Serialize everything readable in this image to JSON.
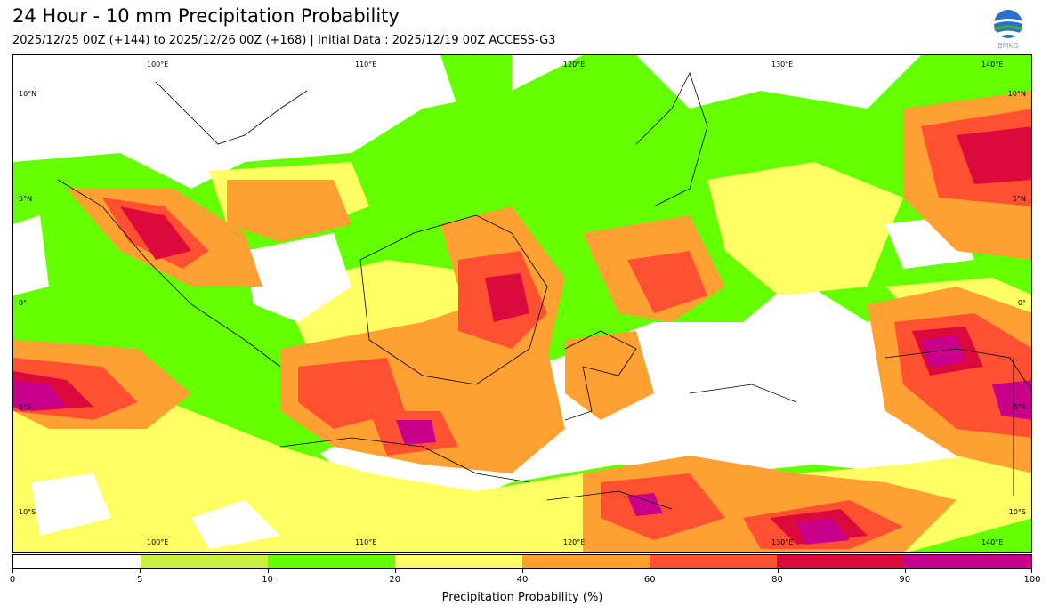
{
  "header": {
    "title": "24 Hour - 10 mm Precipitation Probability",
    "subtitle": "2025/12/25 00Z (+144) to 2025/12/26 00Z (+168) | Initial Data : 2025/12/19 00Z ACCESS-G3",
    "logo_text": "BMKG"
  },
  "map": {
    "lon_labels_top": [
      "100°E",
      "110°E",
      "120°E",
      "130°E",
      "140°E"
    ],
    "lon_labels_bottom": [
      "100°E",
      "110°E",
      "120°E",
      "130°E",
      "140°E"
    ],
    "lat_labels_left": [
      "10°N",
      "5°N",
      "0°",
      "5°S",
      "10°S"
    ],
    "lat_labels_right": [
      "10°N",
      "5°N",
      "0°",
      "5°S",
      "10°S"
    ]
  },
  "colorbar": {
    "title": "Precipitation Probability (%)",
    "ticks": [
      "0",
      "5",
      "10",
      "20",
      "40",
      "60",
      "80",
      "90",
      "100"
    ],
    "bins": [
      {
        "from": 0,
        "to": 5,
        "color": "#ffffff"
      },
      {
        "from": 5,
        "to": 10,
        "color": "#c8f03c"
      },
      {
        "from": 10,
        "to": 20,
        "color": "#64ff00"
      },
      {
        "from": 20,
        "to": 40,
        "color": "#ffff64"
      },
      {
        "from": 40,
        "to": 60,
        "color": "#ffa032"
      },
      {
        "from": 60,
        "to": 80,
        "color": "#ff5032"
      },
      {
        "from": 80,
        "to": 90,
        "color": "#dc0a3c"
      },
      {
        "from": 90,
        "to": 100,
        "color": "#c8008c"
      }
    ]
  }
}
